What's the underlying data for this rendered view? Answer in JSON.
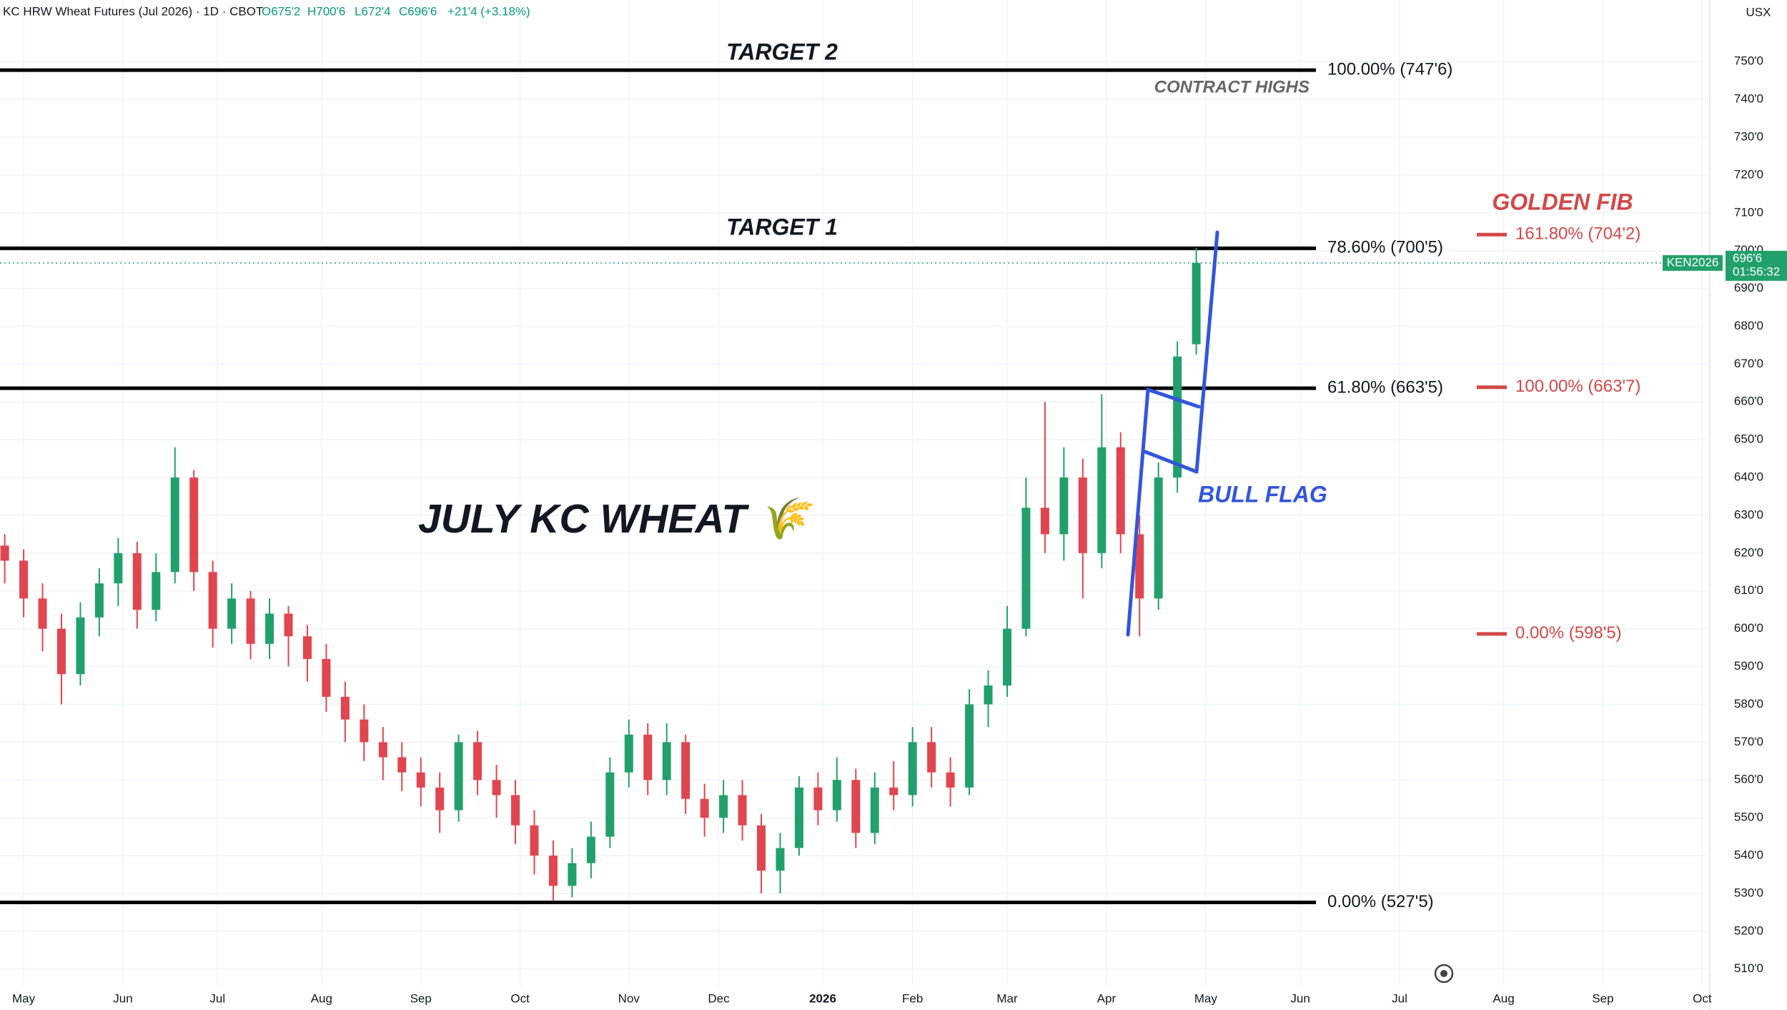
{
  "chart_data": {
    "type": "candlestick",
    "header": {
      "title": "KC HRW Wheat Futures (Jul 2026) · 1D · CBOT",
      "open": "O675'2",
      "high": "H700'6",
      "low": "L672'4",
      "close": "C696'6",
      "change": "+21'4 (+3.18%)"
    },
    "unit": "USX",
    "annotations": {
      "target2": "TARGET 2",
      "target1": "TARGET 1",
      "contract_highs": "CONTRACT HIGHS",
      "name": "JULY KC WHEAT 🌾",
      "golden_fib": "GOLDEN FIB",
      "bull_flag": "BULL FLAG"
    },
    "x": [
      -4,
      0,
      4,
      8,
      12,
      16,
      20,
      24,
      28,
      32,
      36,
      40,
      44,
      48,
      52,
      56,
      60,
      64,
      68,
      72,
      76,
      80,
      84,
      88,
      92,
      96,
      100,
      104,
      108,
      112,
      116,
      120,
      124,
      128,
      132,
      136,
      140,
      144,
      148,
      152,
      156,
      160,
      164,
      168,
      172,
      176,
      180,
      184,
      188,
      192,
      196,
      200,
      204,
      208,
      212,
      216,
      220,
      224,
      228,
      232,
      236,
      240,
      244,
      248
    ],
    "open": [
      622,
      618,
      608,
      600,
      588,
      603,
      612,
      620,
      605,
      615,
      640,
      615,
      600,
      608,
      596,
      604,
      598,
      592,
      582,
      576,
      570,
      566,
      562,
      558,
      552,
      570,
      560,
      556,
      548,
      540,
      532,
      538,
      545,
      562,
      572,
      560,
      570,
      555,
      550,
      556,
      548,
      536,
      542,
      558,
      552,
      560,
      546,
      558,
      556,
      570,
      562,
      558,
      580,
      585,
      600,
      632,
      625,
      640,
      620,
      648,
      625,
      608,
      640,
      675.25
    ],
    "high": [
      625,
      621,
      612,
      604,
      607,
      616,
      624,
      623,
      620,
      648,
      642,
      618,
      612,
      610,
      608,
      606,
      601,
      596,
      586,
      580,
      574,
      570,
      566,
      562,
      572,
      573,
      564,
      560,
      552,
      544,
      542,
      549,
      566,
      576,
      575,
      575,
      572,
      559,
      560,
      560,
      551,
      546,
      561,
      562,
      566,
      563,
      562,
      565,
      574,
      574,
      566,
      584,
      589,
      606,
      640,
      660,
      648,
      645,
      662,
      652,
      630,
      644,
      676,
      700.75
    ],
    "low": [
      612,
      603,
      594,
      580,
      585,
      598,
      606,
      600,
      602,
      612,
      610,
      595,
      596,
      592,
      592,
      590,
      586,
      578,
      570,
      565,
      560,
      557,
      553,
      546,
      549,
      556,
      550,
      543,
      535,
      528,
      529,
      534,
      542,
      558,
      556,
      556,
      551,
      545,
      546,
      544,
      530,
      530,
      540,
      548,
      549,
      542,
      543,
      552,
      553,
      558,
      553,
      556,
      574,
      582,
      598,
      620,
      618,
      608,
      616,
      620,
      598,
      605,
      636,
      672.5
    ],
    "close": [
      618,
      608,
      600,
      588,
      603,
      612,
      620,
      605,
      615,
      640,
      615,
      600,
      608,
      596,
      604,
      598,
      592,
      582,
      576,
      570,
      566,
      562,
      558,
      552,
      570,
      560,
      556,
      548,
      540,
      532,
      538,
      545,
      562,
      572,
      560,
      570,
      555,
      550,
      556,
      548,
      536,
      542,
      558,
      552,
      560,
      546,
      558,
      556,
      570,
      562,
      558,
      580,
      585,
      600,
      632,
      625,
      640,
      620,
      648,
      625,
      608,
      640,
      672,
      696.75
    ],
    "up_color": "#22a06b",
    "down_color": "#e0464f",
    "xlim": [
      -5,
      356
    ],
    "xticks": [
      {
        "value": 0,
        "label": "May"
      },
      {
        "value": 21,
        "label": "Jun"
      },
      {
        "value": 41,
        "label": "Jul"
      },
      {
        "value": 63,
        "label": "Aug"
      },
      {
        "value": 84,
        "label": "Sep"
      },
      {
        "value": 105,
        "label": "Oct"
      },
      {
        "value": 128,
        "label": "Nov"
      },
      {
        "value": 147,
        "label": "Dec"
      },
      {
        "value": 169,
        "label": "2026"
      },
      {
        "value": 188,
        "label": "Feb"
      },
      {
        "value": 208,
        "label": "Mar"
      },
      {
        "value": 229,
        "label": "Apr"
      },
      {
        "value": 250,
        "label": "May"
      },
      {
        "value": 270,
        "label": "Jun"
      },
      {
        "value": 291,
        "label": "Jul"
      },
      {
        "value": 313,
        "label": "Aug"
      },
      {
        "value": 334,
        "label": "Sep"
      },
      {
        "value": 355,
        "label": "Oct"
      }
    ],
    "ylim": [
      505.4,
      766.3
    ],
    "yticks": [
      {
        "value": 510,
        "label": "510'0"
      },
      {
        "value": 520,
        "label": "520'0"
      },
      {
        "value": 530,
        "label": "530'0"
      },
      {
        "value": 540,
        "label": "540'0"
      },
      {
        "value": 550,
        "label": "550'0"
      },
      {
        "value": 560,
        "label": "560'0"
      },
      {
        "value": 570,
        "label": "570'0"
      },
      {
        "value": 580,
        "label": "580'0"
      },
      {
        "value": 590,
        "label": "590'0"
      },
      {
        "value": 600,
        "label": "600'0"
      },
      {
        "value": 610,
        "label": "610'0"
      },
      {
        "value": 620,
        "label": "620'0"
      },
      {
        "value": 630,
        "label": "630'0"
      },
      {
        "value": 640,
        "label": "640'0"
      },
      {
        "value": 650,
        "label": "650'0"
      },
      {
        "value": 660,
        "label": "660'0"
      },
      {
        "value": 670,
        "label": "670'0"
      },
      {
        "value": 680,
        "label": "680'0"
      },
      {
        "value": 690,
        "label": "690'0"
      },
      {
        "value": 700,
        "label": "700'0"
      },
      {
        "value": 710,
        "label": "710'0"
      },
      {
        "value": 720,
        "label": "720'0"
      },
      {
        "value": 730,
        "label": "730'0"
      },
      {
        "value": 740,
        "label": "740'0"
      },
      {
        "value": 750,
        "label": "750'0"
      }
    ],
    "grid": true,
    "fib_levels": [
      {
        "value": 747.75,
        "label": "100.00% (747'6)"
      },
      {
        "value": 700.625,
        "label": "78.60% (700'5)"
      },
      {
        "value": 663.625,
        "label": "61.80% (663'5)"
      },
      {
        "value": 527.625,
        "label": "0.00% (527'5)"
      }
    ],
    "golden_fib_levels": [
      {
        "value": 704.25,
        "label": "161.80% (704'2)"
      },
      {
        "value": 663.875,
        "label": "100.00% (663'7)"
      },
      {
        "value": 598.625,
        "label": "0.00% (598'5)"
      }
    ],
    "last_price": {
      "value": 696.75,
      "label": "696'6"
    },
    "symbol_tag": "KEN2026",
    "countdown": "01:56:32"
  }
}
